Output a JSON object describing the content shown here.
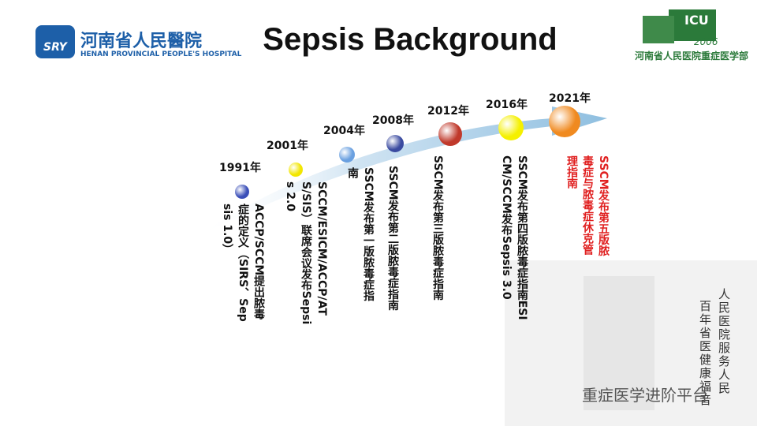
{
  "header": {
    "logo_left": {
      "badge": "SRY",
      "name_cn": "河南省人民醫院",
      "name_en": "HENAN PROVINCIAL PEOPLE'S HOSPITAL"
    },
    "title": "Sepsis Background",
    "logo_right": {
      "badge": "ICU",
      "year": "2006",
      "name_cn": "河南省人民医院重症医学部"
    }
  },
  "timeline": [
    {
      "year": "1991年",
      "text": "ACCP/SCCM提出脓毒症的定义（SIRS、Sepsis 1.0）"
    },
    {
      "year": "2001年",
      "text": "SCCM/ESICM/ACCP/ATS/SIS）联席会议发布Sepsis 2.0"
    },
    {
      "year": "2004年",
      "text": "SSCM发布第一版脓毒症指南"
    },
    {
      "year": "2008年",
      "text": "SSCM发布第二版脓毒症指南"
    },
    {
      "year": "2012年",
      "text": "SSCM发布第三版脓毒症指南"
    },
    {
      "year": "2016年",
      "text": "SSCM发布第四版脓毒症指南ESICM/SCCM发布Sepsis 3.0"
    },
    {
      "year": "2021年",
      "text": "SSCM发布第五版脓毒症与脓毒症休克管理指南"
    }
  ],
  "slogan": [
    "人民医院服务人民",
    "百年省医健康福音"
  ],
  "watermark": "重症医学进阶平台"
}
